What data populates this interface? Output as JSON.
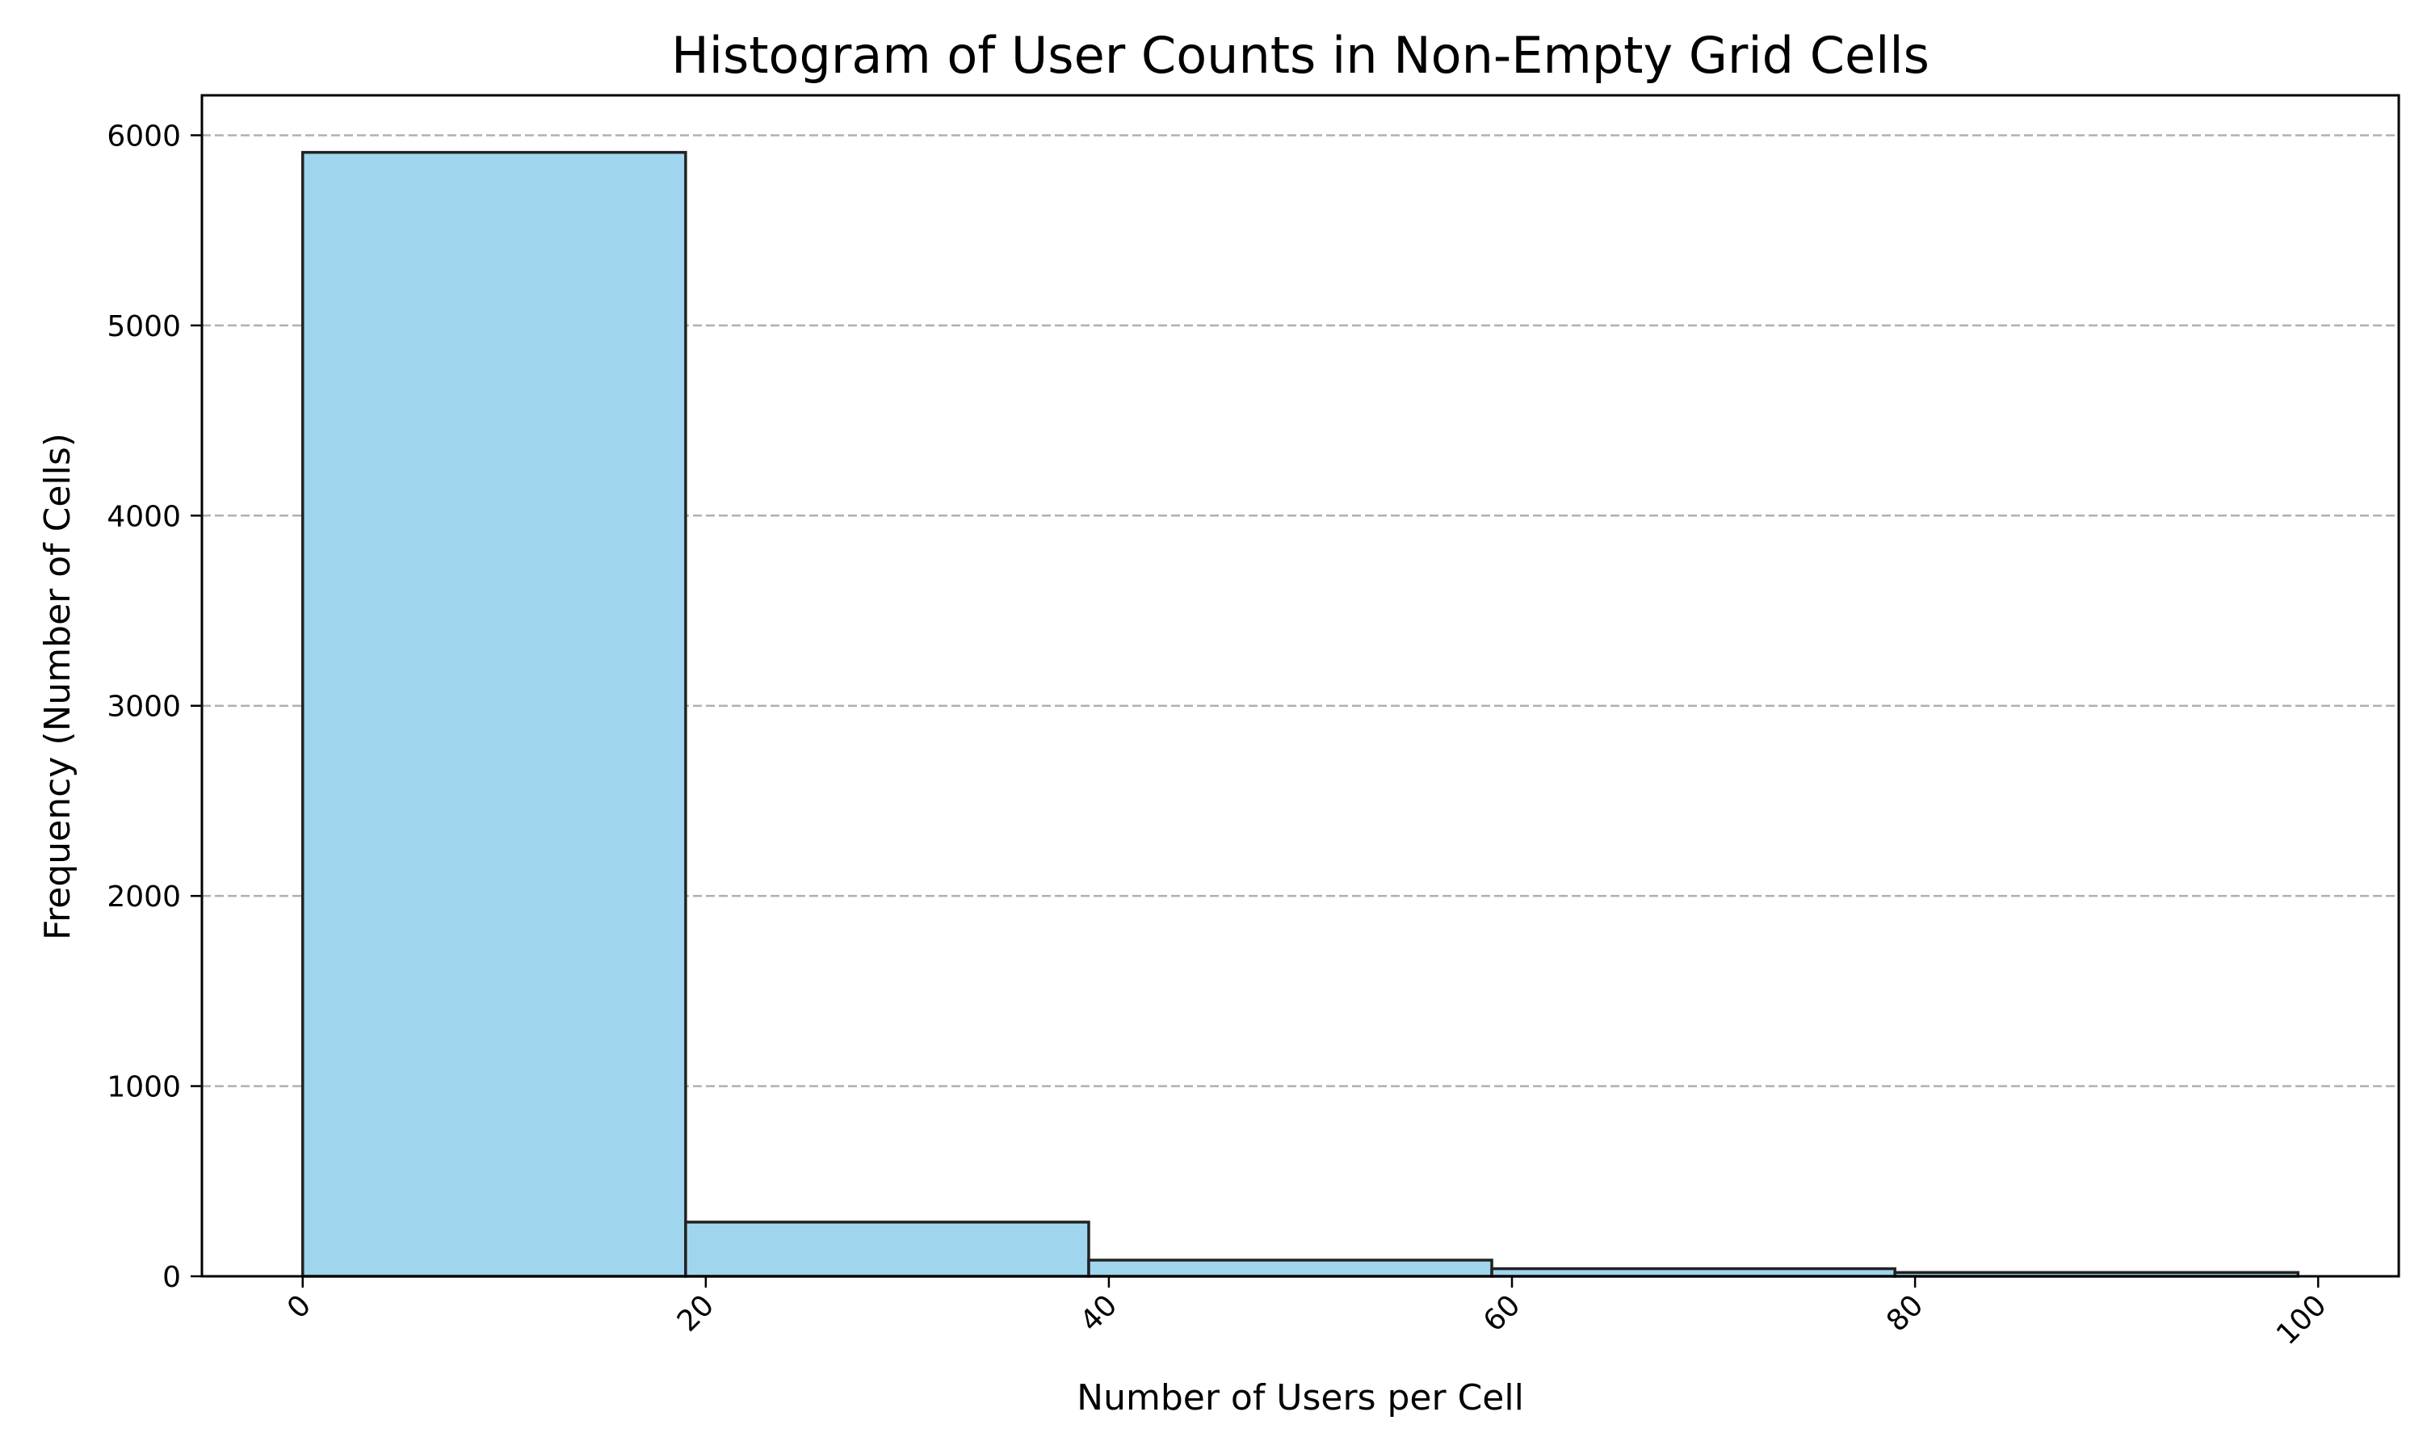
{
  "chart_data": {
    "type": "bar",
    "title": "Histogram of User Counts in Non-Empty Grid Cells",
    "xlabel": "Number of Users per Cell",
    "ylabel": "Frequency (Number of Cells)",
    "bins": [
      {
        "x0": 0,
        "x1": 19,
        "value": 5910
      },
      {
        "x0": 19,
        "x1": 39,
        "value": 285
      },
      {
        "x0": 39,
        "x1": 59,
        "value": 85
      },
      {
        "x0": 59,
        "x1": 79,
        "value": 40
      },
      {
        "x0": 79,
        "x1": 99,
        "value": 20
      }
    ],
    "xlim": [
      -5,
      104
    ],
    "ylim": [
      0,
      6210
    ],
    "xticks": [
      0,
      20,
      40,
      60,
      80,
      100
    ],
    "yticks": [
      0,
      1000,
      2000,
      3000,
      4000,
      5000,
      6000
    ],
    "grid": "y-dashed",
    "bar_color": "#9fd6ee",
    "edge_color": "#222222"
  }
}
